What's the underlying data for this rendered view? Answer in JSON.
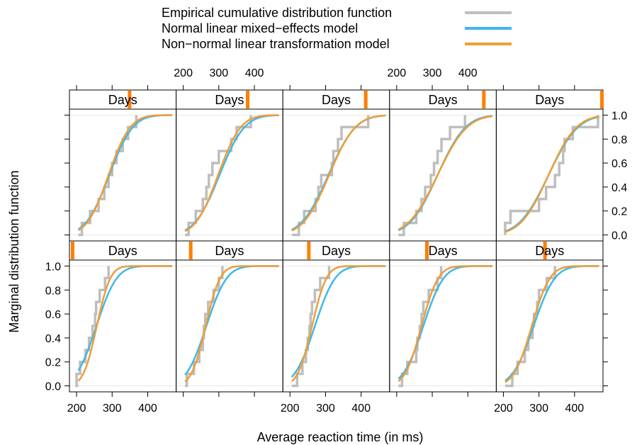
{
  "chart_data": {
    "type": "line",
    "layout": "lattice 5 columns x 2 rows",
    "xlabel": "Average reaction time (in ms)",
    "ylabel": "Marginal distribution function",
    "strip_label": "Days",
    "xlim": [
      180,
      480
    ],
    "ylim": [
      -0.05,
      1.05
    ],
    "x_ticks": [
      200,
      300,
      400
    ],
    "y_ticks": [
      0.0,
      0.2,
      0.4,
      0.6,
      0.8,
      1.0
    ],
    "y_tick_labels": [
      "0.0",
      "0.2",
      "0.4",
      "0.6",
      "0.8",
      "1.0"
    ],
    "grid_lines": [
      0,
      1
    ],
    "legend": {
      "placement": "top",
      "entries": [
        {
          "label": "Empirical cumulative distribution function",
          "color": "#bebebe"
        },
        {
          "label": "Normal linear mixed−effects model",
          "color": "#3fb8e8"
        },
        {
          "label": "Non−normal linear transformation model",
          "color": "#f09d38"
        }
      ]
    },
    "colors": {
      "ecdf": "#bebebe",
      "normal": "#3fb8e8",
      "nonnormal": "#f09d38",
      "strip_marker": "#ff7f00"
    },
    "panels": [
      {
        "row": 1,
        "col": 1,
        "days_level": 5,
        "normal": {
          "mean": 292,
          "sd": 52
        },
        "nonnormal": {
          "mean": 290,
          "sd": 48
        },
        "ecdf": [
          [
            215,
            0.1
          ],
          [
            222,
            0.1
          ],
          [
            238,
            0.2
          ],
          [
            262,
            0.3
          ],
          [
            278,
            0.4
          ],
          [
            290,
            0.5
          ],
          [
            300,
            0.6
          ],
          [
            312,
            0.7
          ],
          [
            330,
            0.8
          ],
          [
            345,
            0.9
          ],
          [
            368,
            1.0
          ]
        ]
      },
      {
        "row": 1,
        "col": 2,
        "days_level": 6,
        "normal": {
          "mean": 302,
          "sd": 55
        },
        "nonnormal": {
          "mean": 298,
          "sd": 50
        },
        "ecdf": [
          [
            215,
            0.1
          ],
          [
            235,
            0.2
          ],
          [
            255,
            0.3
          ],
          [
            265,
            0.4
          ],
          [
            272,
            0.5
          ],
          [
            282,
            0.6
          ],
          [
            300,
            0.7
          ],
          [
            335,
            0.8
          ],
          [
            350,
            0.9
          ],
          [
            390,
            1.0
          ]
        ]
      },
      {
        "row": 1,
        "col": 3,
        "days_level": 7,
        "normal": {
          "mean": 308,
          "sd": 60
        },
        "nonnormal": {
          "mean": 310,
          "sd": 58
        },
        "ecdf": [
          [
            225,
            0.1
          ],
          [
            240,
            0.2
          ],
          [
            272,
            0.3
          ],
          [
            280,
            0.4
          ],
          [
            288,
            0.5
          ],
          [
            318,
            0.6
          ],
          [
            322,
            0.7
          ],
          [
            335,
            0.8
          ],
          [
            345,
            0.9
          ],
          [
            420,
            1.0
          ]
        ]
      },
      {
        "row": 1,
        "col": 4,
        "days_level": 8,
        "normal": {
          "mean": 315,
          "sd": 62
        },
        "nonnormal": {
          "mean": 315,
          "sd": 65
        },
        "ecdf": [
          [
            220,
            0.1
          ],
          [
            255,
            0.2
          ],
          [
            270,
            0.3
          ],
          [
            280,
            0.4
          ],
          [
            296,
            0.5
          ],
          [
            305,
            0.6
          ],
          [
            315,
            0.7
          ],
          [
            326,
            0.8
          ],
          [
            350,
            0.9
          ],
          [
            392,
            1.0
          ]
        ]
      },
      {
        "row": 1,
        "col": 5,
        "days_level": 9,
        "normal": {
          "mean": 327,
          "sd": 65
        },
        "nonnormal": {
          "mean": 327,
          "sd": 62
        },
        "ecdf": [
          [
            205,
            0.1
          ],
          [
            220,
            0.2
          ],
          [
            300,
            0.3
          ],
          [
            320,
            0.4
          ],
          [
            345,
            0.5
          ],
          [
            357,
            0.6
          ],
          [
            368,
            0.7
          ],
          [
            372,
            0.8
          ],
          [
            395,
            0.9
          ],
          [
            466,
            1.0
          ]
        ]
      },
      {
        "row": 2,
        "col": 1,
        "days_level": 0,
        "normal": {
          "mean": 256,
          "sd": 45
        },
        "nonnormal": {
          "mean": 257,
          "sd": 30
        },
        "ecdf": [
          [
            200,
            0.1
          ],
          [
            210,
            0.2
          ],
          [
            225,
            0.3
          ],
          [
            235,
            0.4
          ],
          [
            245,
            0.5
          ],
          [
            252,
            0.6
          ],
          [
            255,
            0.7
          ],
          [
            265,
            0.8
          ],
          [
            280,
            0.9
          ],
          [
            290,
            1.0
          ]
        ]
      },
      {
        "row": 2,
        "col": 2,
        "days_level": 1,
        "normal": {
          "mean": 265,
          "sd": 45
        },
        "nonnormal": {
          "mean": 263,
          "sd": 32
        },
        "ecdf": [
          [
            210,
            0.1
          ],
          [
            230,
            0.2
          ],
          [
            245,
            0.3
          ],
          [
            255,
            0.4
          ],
          [
            258,
            0.5
          ],
          [
            262,
            0.6
          ],
          [
            270,
            0.7
          ],
          [
            285,
            0.8
          ],
          [
            300,
            0.9
          ],
          [
            310,
            1.0
          ]
        ]
      },
      {
        "row": 2,
        "col": 3,
        "days_level": 2,
        "normal": {
          "mean": 270,
          "sd": 45
        },
        "nonnormal": {
          "mean": 262,
          "sd": 32
        },
        "ecdf": [
          [
            220,
            0.1
          ],
          [
            235,
            0.2
          ],
          [
            245,
            0.3
          ],
          [
            250,
            0.4
          ],
          [
            255,
            0.5
          ],
          [
            258,
            0.6
          ],
          [
            262,
            0.7
          ],
          [
            270,
            0.8
          ],
          [
            285,
            0.9
          ],
          [
            310,
            1.0
          ]
        ]
      },
      {
        "row": 2,
        "col": 4,
        "days_level": 3,
        "normal": {
          "mean": 275,
          "sd": 45
        },
        "nonnormal": {
          "mean": 270,
          "sd": 37
        },
        "ecdf": [
          [
            215,
            0.1
          ],
          [
            230,
            0.2
          ],
          [
            255,
            0.3
          ],
          [
            258,
            0.4
          ],
          [
            265,
            0.5
          ],
          [
            270,
            0.6
          ],
          [
            275,
            0.7
          ],
          [
            290,
            0.8
          ],
          [
            315,
            0.9
          ],
          [
            325,
            1.0
          ]
        ]
      },
      {
        "row": 2,
        "col": 5,
        "days_level": 4,
        "normal": {
          "mean": 285,
          "sd": 47
        },
        "nonnormal": {
          "mean": 280,
          "sd": 40
        },
        "ecdf": [
          [
            225,
            0.1
          ],
          [
            240,
            0.2
          ],
          [
            260,
            0.3
          ],
          [
            270,
            0.4
          ],
          [
            282,
            0.5
          ],
          [
            286,
            0.6
          ],
          [
            295,
            0.7
          ],
          [
            300,
            0.8
          ],
          [
            322,
            0.9
          ],
          [
            345,
            1.0
          ]
        ]
      }
    ]
  }
}
